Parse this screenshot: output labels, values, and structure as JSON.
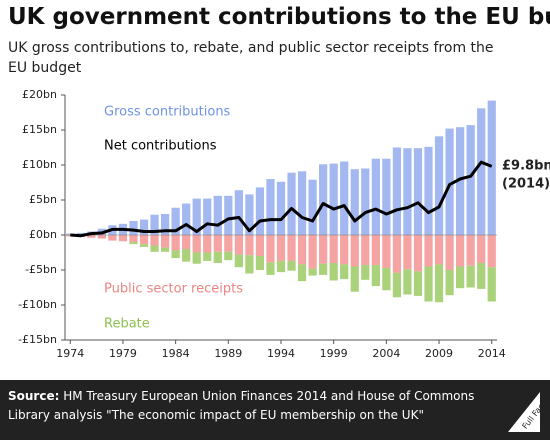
{
  "chart_data": {
    "type": "bar",
    "title": "UK government contributions to the EU budget",
    "subtitle": "UK gross contributions to, rebate, and public sector receipts from the EU budget",
    "x": [
      1974,
      1975,
      1976,
      1977,
      1978,
      1979,
      1980,
      1981,
      1982,
      1983,
      1984,
      1985,
      1986,
      1987,
      1988,
      1989,
      1990,
      1991,
      1992,
      1993,
      1994,
      1995,
      1996,
      1997,
      1998,
      1999,
      2000,
      2001,
      2002,
      2003,
      2004,
      2005,
      2006,
      2007,
      2008,
      2009,
      2010,
      2011,
      2012,
      2013,
      2014
    ],
    "xlim": [
      1973.5,
      2014.5
    ],
    "xticks": [
      1974,
      1979,
      1984,
      1989,
      1994,
      1999,
      2004,
      2009,
      2014
    ],
    "ylim": [
      -15,
      20
    ],
    "yticks": [
      {
        "value": 20,
        "label": "£20bn"
      },
      {
        "value": 15,
        "label": "£15bn"
      },
      {
        "value": 10,
        "label": "£10bn"
      },
      {
        "value": 5,
        "label": "£5bn"
      },
      {
        "value": 0,
        "label": "£0bn"
      },
      {
        "value": -5,
        "label": "-£5bn"
      },
      {
        "value": -10,
        "label": "-£10bn"
      },
      {
        "value": -15,
        "label": "-£15bn"
      }
    ],
    "grid": false,
    "series": [
      {
        "name": "Gross contributions",
        "color": "#a3b8f0",
        "label_color": "#6f93e6",
        "values": [
          0.2,
          0.3,
          0.5,
          0.9,
          1.4,
          1.6,
          2.0,
          2.2,
          2.9,
          3.0,
          3.9,
          4.5,
          5.2,
          5.2,
          5.6,
          5.6,
          6.4,
          5.8,
          6.8,
          8.0,
          7.6,
          8.9,
          9.1,
          7.9,
          10.1,
          10.2,
          10.5,
          9.4,
          9.5,
          10.9,
          10.9,
          12.5,
          12.4,
          12.4,
          12.6,
          14.1,
          15.2,
          15.4,
          15.7,
          18.1,
          19.2
        ]
      },
      {
        "name": "Public sector receipts",
        "color": "#f5a3a3",
        "label_color": "#ea8585",
        "values": [
          -0.2,
          -0.3,
          -0.4,
          -0.5,
          -0.8,
          -0.9,
          -1.0,
          -1.3,
          -1.5,
          -1.8,
          -2.2,
          -2.0,
          -2.5,
          -2.5,
          -2.4,
          -2.4,
          -2.8,
          -2.9,
          -3.0,
          -3.9,
          -3.7,
          -3.7,
          -4.2,
          -4.8,
          -4.1,
          -4.0,
          -4.2,
          -4.5,
          -4.3,
          -4.3,
          -4.7,
          -5.4,
          -4.9,
          -5.2,
          -4.5,
          -4.2,
          -5.0,
          -4.5,
          -4.4,
          -4.0,
          -4.6
        ]
      },
      {
        "name": "Rebate",
        "color": "#a9d27a",
        "label_color": "#8cc250",
        "values": [
          0,
          0,
          0,
          0,
          0,
          0,
          -0.3,
          -0.4,
          -0.9,
          -0.6,
          -1.1,
          -1.8,
          -1.6,
          -1.2,
          -1.6,
          -1.2,
          -1.8,
          -2.6,
          -2.0,
          -1.8,
          -1.6,
          -1.4,
          -2.4,
          -1.0,
          -1.6,
          -2.5,
          -2.1,
          -3.6,
          -2.1,
          -3.0,
          -3.2,
          -3.5,
          -3.6,
          -3.5,
          -5.0,
          -5.4,
          -3.6,
          -3.1,
          -3.1,
          -3.7,
          -4.9
        ]
      },
      {
        "name": "Net contributions",
        "type": "line",
        "color": "#000000",
        "label_color": "#000000",
        "values": [
          0,
          -0.1,
          0.2,
          0.3,
          0.8,
          0.8,
          0.7,
          0.5,
          0.5,
          0.6,
          0.6,
          1.5,
          0.5,
          1.6,
          1.4,
          2.3,
          2.5,
          0.6,
          2.0,
          2.2,
          2.2,
          3.8,
          2.5,
          2.0,
          4.5,
          3.7,
          4.2,
          2.0,
          3.2,
          3.7,
          3.0,
          3.6,
          3.9,
          4.6,
          3.2,
          4.0,
          7.2,
          8.0,
          8.4,
          10.4,
          9.8
        ]
      }
    ],
    "annotation": [
      "£9.8bn",
      "(2014)"
    ],
    "source_label": "Source:",
    "source": "HM Treasury European Union Finances 2014 and House of Commons Library analysis \"The economic impact of EU membership on the UK\"",
    "logo": "Full Fact"
  }
}
